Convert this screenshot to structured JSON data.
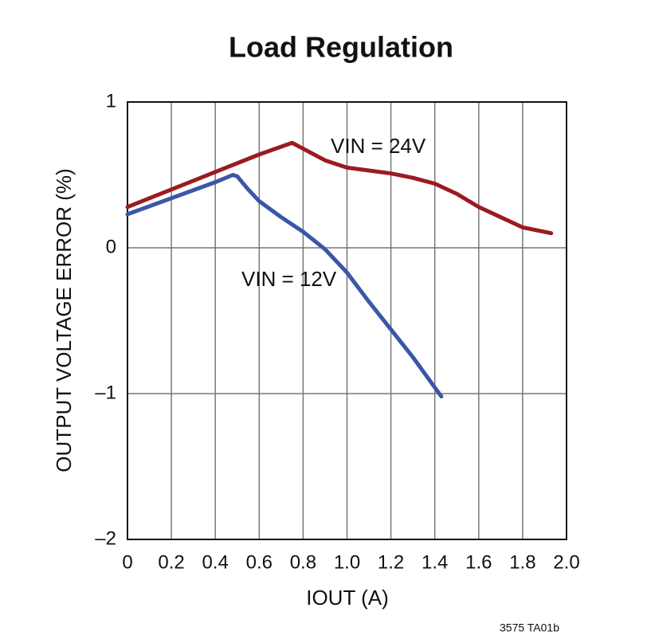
{
  "chart_data": {
    "type": "line",
    "title": "Load Regulation",
    "x_label": "IOUT (A)",
    "y_label": "OUTPUT VOLTAGE ERROR (%)",
    "footnote": "3575 TA01b",
    "xlim": [
      0,
      2
    ],
    "xticks": [
      0,
      0.2,
      0.4,
      0.6,
      0.8,
      {
        "value": 1,
        "label": "1.0"
      },
      1.2,
      1.4,
      1.6,
      1.8,
      {
        "value": 2,
        "label": "2.0"
      }
    ],
    "ylim": [
      -2,
      1
    ],
    "yticks": [
      {
        "value": -2,
        "label": "–2"
      },
      {
        "value": -1,
        "label": "–1"
      },
      0,
      1
    ],
    "grid": true,
    "series": [
      {
        "name": "VIN = 24V",
        "color": "#9b1b20",
        "x": [
          0,
          0.2,
          0.4,
          0.6,
          0.75,
          0.8,
          0.9,
          1.0,
          1.1,
          1.2,
          1.3,
          1.4,
          1.5,
          1.6,
          1.7,
          1.8,
          1.93
        ],
        "values": [
          0.28,
          0.4,
          0.52,
          0.64,
          0.72,
          0.68,
          0.6,
          0.55,
          0.53,
          0.51,
          0.48,
          0.44,
          0.37,
          0.28,
          0.21,
          0.14,
          0.1
        ]
      },
      {
        "name": "VIN = 12V",
        "color": "#3a57a7",
        "x": [
          0,
          0.2,
          0.4,
          0.48,
          0.5,
          0.55,
          0.6,
          0.7,
          0.8,
          0.9,
          1.0,
          1.1,
          1.2,
          1.3,
          1.43
        ],
        "values": [
          0.23,
          0.34,
          0.45,
          0.5,
          0.49,
          0.4,
          0.32,
          0.21,
          0.11,
          -0.01,
          -0.17,
          -0.37,
          -0.56,
          -0.75,
          -1.02
        ]
      }
    ]
  }
}
